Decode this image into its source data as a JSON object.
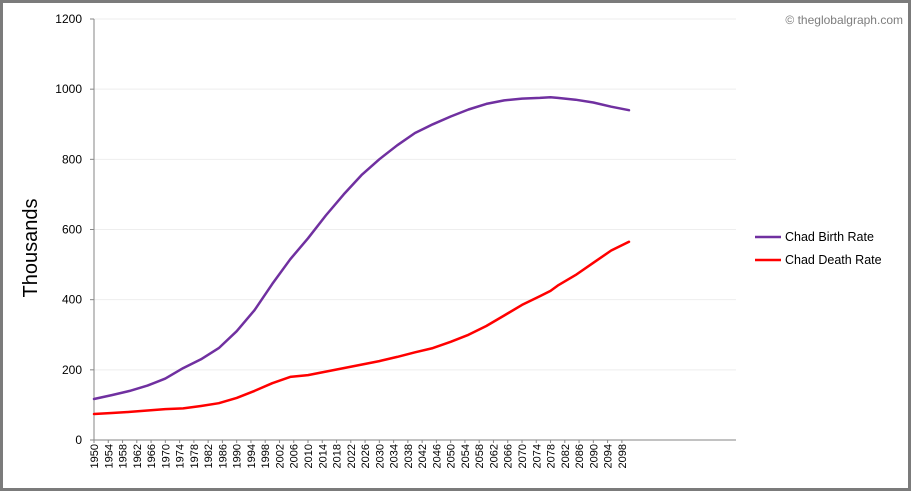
{
  "watermark": "© theglobalgraph.com",
  "chart_data": {
    "type": "line",
    "title": "",
    "xlabel": "",
    "ylabel": "Thousands",
    "ylim": [
      0,
      1200
    ],
    "yticks": [
      0,
      200,
      400,
      600,
      800,
      1000,
      1200
    ],
    "xlim": [
      1950,
      2130
    ],
    "xticks": [
      "1950",
      "1954",
      "1958",
      "1962",
      "1966",
      "1970",
      "1974",
      "1978",
      "1982",
      "1986",
      "1990",
      "1994",
      "1998",
      "2002",
      "2006",
      "2010",
      "2014",
      "2018",
      "2022",
      "2026",
      "2030",
      "2034",
      "2038",
      "2042",
      "2046",
      "2050",
      "2054",
      "2058",
      "2062",
      "2066",
      "2070",
      "2074",
      "2078",
      "2082",
      "2086",
      "2090",
      "2094",
      "2098"
    ],
    "grid": true,
    "legend_position": "right",
    "x": [
      1950,
      1955,
      1960,
      1965,
      1970,
      1975,
      1980,
      1985,
      1990,
      1995,
      2000,
      2005,
      2010,
      2015,
      2020,
      2025,
      2030,
      2035,
      2040,
      2045,
      2050,
      2055,
      2060,
      2065,
      2070,
      2075,
      2078,
      2080,
      2085,
      2090,
      2095,
      2100
    ],
    "series": [
      {
        "name": "Chad Birth Rate",
        "color": "#7030a0",
        "values": [
          117,
          128,
          140,
          155,
          175,
          205,
          230,
          262,
          310,
          370,
          445,
          515,
          575,
          640,
          700,
          755,
          800,
          840,
          875,
          900,
          922,
          942,
          958,
          968,
          973,
          975,
          977,
          975,
          970,
          962,
          950,
          940
        ]
      },
      {
        "name": "Chad Death Rate",
        "color": "#ff0000",
        "values": [
          74,
          77,
          80,
          84,
          88,
          90,
          97,
          105,
          120,
          140,
          162,
          180,
          185,
          195,
          205,
          215,
          225,
          237,
          250,
          262,
          280,
          300,
          325,
          355,
          385,
          410,
          425,
          440,
          470,
          505,
          540,
          565
        ]
      }
    ]
  }
}
